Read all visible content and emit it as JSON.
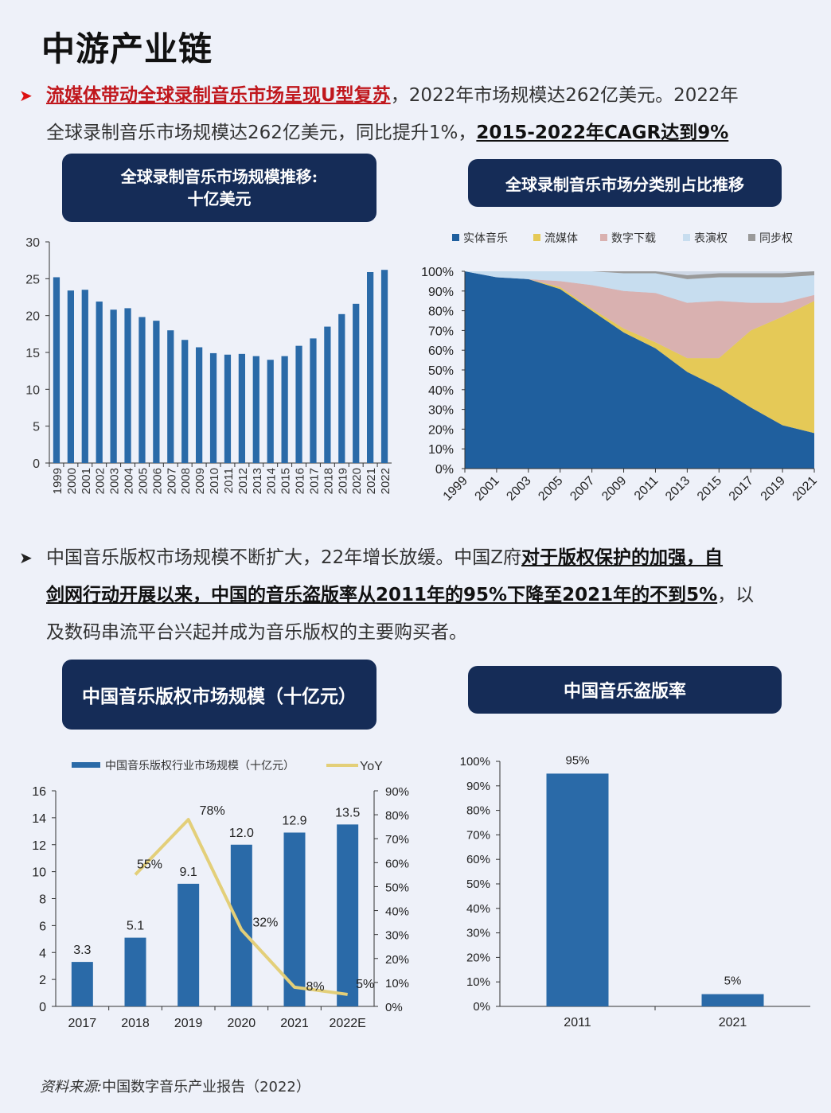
{
  "title": "中游产业链",
  "para1": {
    "highlight": "流媒体带动全球录制音乐市场呈现U型复苏",
    "text1": "，2022年市场规模达262亿美元。2022年",
    "text2": "全球录制音乐市场规模达262亿美元，同比提升1%，",
    "bold": "2015-2022年CAGR达到9%"
  },
  "para2": {
    "text1": "中国音乐版权市场规模不断扩大，22年增长放缓。中国Z府",
    "bold1": "对于版权保护的加强，自",
    "bold2": "剑网行动开展以来，中国的音乐盗版率从2011年的95%下降至2021年的不到5%",
    "text2": "，以",
    "text3": "及数码串流平台兴起并成为音乐版权的主要购买者。"
  },
  "box1": {
    "line1": "全球录制音乐市场规模推移:",
    "line2": "十亿美元"
  },
  "box2": {
    "label": "全球录制音乐市场分类别占比推移"
  },
  "box3": {
    "label": "中国音乐版权市场规模（十亿元）"
  },
  "box4": {
    "label": "中国音乐盗版率"
  },
  "source": {
    "label": "资料来源:",
    "text": "中国数字音乐产业报告（2022）"
  },
  "colors": {
    "bar": "#2a6aa8",
    "dark": "#1f5f9e",
    "yellow": "#e5c957",
    "pink": "#d9b1b0",
    "lightblue": "#c7ddef",
    "gray": "#9a9a9a",
    "yoy": "#e3cf79"
  },
  "chart_data": [
    {
      "type": "bar",
      "categories": [
        "1999",
        "2000",
        "2001",
        "2002",
        "2003",
        "2004",
        "2005",
        "2006",
        "2007",
        "2008",
        "2009",
        "2010",
        "2011",
        "2012",
        "2013",
        "2014",
        "2015",
        "2016",
        "2017",
        "2018",
        "2019",
        "2020",
        "2021",
        "2022"
      ],
      "values": [
        25.2,
        23.4,
        23.5,
        21.9,
        20.8,
        21.0,
        19.8,
        19.3,
        18.0,
        16.7,
        15.7,
        14.9,
        14.7,
        14.8,
        14.5,
        14.0,
        14.5,
        15.9,
        16.9,
        18.5,
        20.2,
        21.6,
        25.9,
        26.2
      ],
      "ylim": [
        0,
        30
      ],
      "yticks": [
        0,
        5,
        10,
        15,
        20,
        25,
        30
      ]
    },
    {
      "type": "area",
      "stacked_percent": true,
      "x": [
        "1999",
        "2001",
        "2003",
        "2005",
        "2007",
        "2009",
        "2011",
        "2013",
        "2015",
        "2017",
        "2019",
        "2021"
      ],
      "series": [
        {
          "name": "实体音乐",
          "values": [
            100,
            97,
            96,
            91,
            80,
            69,
            61,
            49,
            41,
            31,
            22,
            18
          ]
        },
        {
          "name": "流媒体",
          "values": [
            0,
            0,
            0,
            1,
            1,
            2,
            3,
            7,
            15,
            39,
            55,
            67
          ]
        },
        {
          "name": "数字下载",
          "values": [
            0,
            0,
            0,
            3,
            12,
            19,
            25,
            28,
            29,
            14,
            7,
            3
          ]
        },
        {
          "name": "表演权",
          "values": [
            0,
            3,
            4,
            5,
            7,
            9,
            10,
            12,
            12,
            13,
            13,
            10
          ]
        },
        {
          "name": "同步权",
          "values": [
            0,
            0,
            0,
            0,
            0,
            1,
            1,
            2,
            2,
            2,
            2,
            2
          ]
        }
      ],
      "yticks": [
        "0%",
        "10%",
        "20%",
        "30%",
        "40%",
        "50%",
        "60%",
        "70%",
        "80%",
        "90%",
        "100%"
      ],
      "legend": "top"
    },
    {
      "type": "bar",
      "categories": [
        "2017",
        "2018",
        "2019",
        "2020",
        "2021",
        "2022E"
      ],
      "series": [
        {
          "name": "中国音乐版权行业市场规模（十亿元）",
          "values": [
            3.3,
            5.1,
            9.1,
            12.0,
            12.9,
            13.5
          ],
          "labels": [
            "3.3",
            "5.1",
            "9.1",
            "12.0",
            "12.9",
            "13.5"
          ]
        },
        {
          "name": "YoY",
          "type": "line",
          "values": [
            null,
            55,
            78,
            32,
            8,
            5
          ],
          "labels": [
            "",
            "55%",
            "78%",
            "32%",
            "8%",
            "5%"
          ]
        }
      ],
      "ylim": [
        0,
        16
      ],
      "yticks": [
        0,
        2,
        4,
        6,
        8,
        10,
        12,
        14,
        16
      ],
      "y2lim": [
        0,
        90
      ],
      "y2ticks": [
        "0%",
        "10%",
        "20%",
        "30%",
        "40%",
        "50%",
        "60%",
        "70%",
        "80%",
        "90%"
      ],
      "legend": "top"
    },
    {
      "type": "bar",
      "categories": [
        "2011",
        "2021"
      ],
      "values": [
        95,
        5
      ],
      "labels": [
        "95%",
        "5%"
      ],
      "ylim": [
        0,
        100
      ],
      "yticks": [
        "0%",
        "10%",
        "20%",
        "30%",
        "40%",
        "50%",
        "60%",
        "70%",
        "80%",
        "90%",
        "100%"
      ]
    }
  ]
}
